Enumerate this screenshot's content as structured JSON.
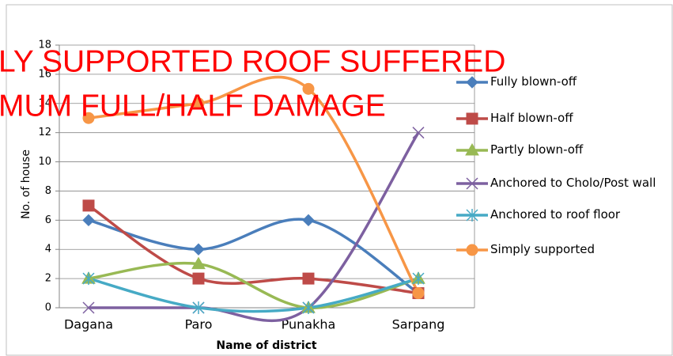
{
  "chart_data": {
    "type": "line",
    "annotations": [
      "LY SUPPORTED ROOF SUFFERED",
      "MUM FULL/HALF DAMAGE"
    ],
    "x_label": "Name of district",
    "y_label": "No. of house",
    "categories": [
      "Dagana",
      "Paro",
      "Punakha",
      "Sarpang"
    ],
    "series": [
      {
        "name": "Fully blown-off",
        "color": "#4a7ebb",
        "marker": "diamond",
        "values": [
          6,
          4,
          6,
          1
        ]
      },
      {
        "name": "Half blown-off",
        "color": "#be4b48",
        "marker": "square",
        "values": [
          7,
          2,
          2,
          1
        ]
      },
      {
        "name": "Partly blown-off",
        "color": "#98b954",
        "marker": "triangle",
        "values": [
          2,
          3,
          0,
          2
        ]
      },
      {
        "name": "Anchored to Cholo/Post wall",
        "color": "#7d60a0",
        "marker": "x",
        "values": [
          0,
          0,
          0,
          12
        ]
      },
      {
        "name": "Anchored to roof floor",
        "color": "#46aac5",
        "marker": "star",
        "values": [
          2,
          0,
          0,
          2
        ]
      },
      {
        "name": "Simply supported",
        "color": "#f79646",
        "marker": "circle",
        "values": [
          13,
          14,
          15,
          1
        ]
      }
    ],
    "ylim": [
      0,
      18
    ],
    "yticks": [
      0,
      2,
      4,
      6,
      8,
      10,
      12,
      14,
      16,
      18
    ],
    "grid": true,
    "smooth": true,
    "legend": "right"
  }
}
